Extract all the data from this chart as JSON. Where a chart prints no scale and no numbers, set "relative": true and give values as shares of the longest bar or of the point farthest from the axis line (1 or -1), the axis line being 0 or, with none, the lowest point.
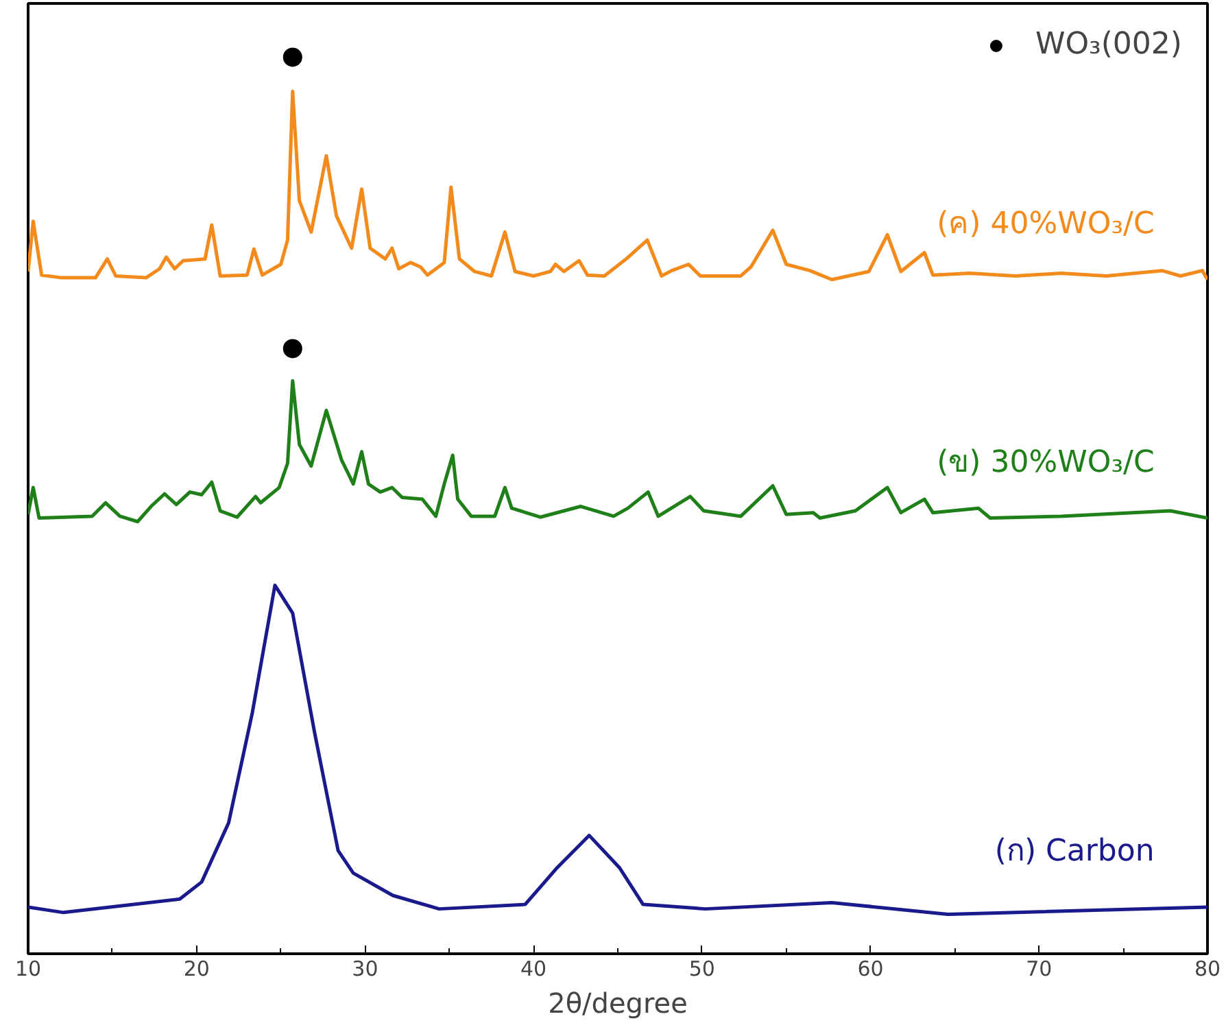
{
  "chart_data": {
    "type": "line",
    "xlabel": "2θ/degree",
    "relative": true,
    "xlim": [
      10,
      80
    ],
    "xticks": [
      10,
      20,
      30,
      40,
      50,
      60,
      70,
      80
    ],
    "tick_labels": "x",
    "grid": false,
    "legend": "top right",
    "line_style": "solid",
    "marker": "none",
    "series": [
      {
        "name": "(ค) 40%WO₃/C",
        "color": "#f28a1c",
        "x": [
          10.0,
          10.3,
          10.8,
          12,
          14,
          14.7,
          15.2,
          17,
          17.8,
          18.2,
          18.7,
          19.2,
          20.5,
          20.9,
          21.4,
          23,
          23.4,
          23.9,
          25,
          25.4,
          25.7,
          26.1,
          26.8,
          27.7,
          28.3,
          29.2,
          29.8,
          30.3,
          31.2,
          31.6,
          32,
          32.7,
          33.3,
          33.7,
          34.7,
          35.1,
          35.6,
          36.5,
          37.5,
          38.3,
          38.9,
          40,
          41,
          41.3,
          41.8,
          42.7,
          43.2,
          44.2,
          45.5,
          46.75,
          47.6,
          48.2,
          49.2,
          49.9,
          52.3,
          52.9,
          54.2,
          55.0,
          56.4,
          57.7,
          59.9,
          61.0,
          61.8,
          63.2,
          63.7,
          65.9,
          68.6,
          71.3,
          74.0,
          77.3,
          78.4,
          79.7,
          80
        ],
        "values": [
          0.761,
          0.817,
          0.757,
          0.754,
          0.754,
          0.775,
          0.756,
          0.754,
          0.764,
          0.777,
          0.764,
          0.773,
          0.775,
          0.813,
          0.756,
          0.757,
          0.786,
          0.757,
          0.769,
          0.796,
          0.962,
          0.84,
          0.805,
          0.89,
          0.823,
          0.787,
          0.853,
          0.787,
          0.775,
          0.787,
          0.764,
          0.771,
          0.766,
          0.757,
          0.771,
          0.855,
          0.775,
          0.761,
          0.756,
          0.805,
          0.761,
          0.756,
          0.761,
          0.769,
          0.761,
          0.773,
          0.757,
          0.756,
          0.775,
          0.796,
          0.756,
          0.762,
          0.769,
          0.756,
          0.756,
          0.766,
          0.807,
          0.769,
          0.762,
          0.752,
          0.761,
          0.802,
          0.761,
          0.782,
          0.757,
          0.759,
          0.756,
          0.759,
          0.756,
          0.762,
          0.756,
          0.762,
          0.752
        ]
      },
      {
        "name": "(ข) 30%WO₃/C",
        "color": "#1f8019",
        "x": [
          10.0,
          10.3,
          10.65,
          13.8,
          14.6,
          15.45,
          16.5,
          17.3,
          18.1,
          18.8,
          19.6,
          20.3,
          20.9,
          21.4,
          22.4,
          23.5,
          23.8,
          24.9,
          25.4,
          25.7,
          26.1,
          26.8,
          27.7,
          28.6,
          29.3,
          29.8,
          30.2,
          30.9,
          31.6,
          32.2,
          33.4,
          34.2,
          34.7,
          35.2,
          35.5,
          36.3,
          37.7,
          38.3,
          38.7,
          40.4,
          42.8,
          44.75,
          45.6,
          46.8,
          47.4,
          49.3,
          50.1,
          52.3,
          54.2,
          55.0,
          56.6,
          57.0,
          59.1,
          61.0,
          61.8,
          63.2,
          63.7,
          66.4,
          67.1,
          71.3,
          77.8,
          80
        ],
        "values": [
          0.49,
          0.52,
          0.486,
          0.488,
          0.503,
          0.488,
          0.482,
          0.499,
          0.513,
          0.501,
          0.515,
          0.512,
          0.526,
          0.494,
          0.487,
          0.51,
          0.503,
          0.52,
          0.547,
          0.639,
          0.568,
          0.544,
          0.606,
          0.551,
          0.524,
          0.56,
          0.524,
          0.515,
          0.52,
          0.509,
          0.507,
          0.488,
          0.524,
          0.556,
          0.507,
          0.488,
          0.488,
          0.52,
          0.497,
          0.487,
          0.499,
          0.488,
          0.497,
          0.515,
          0.488,
          0.51,
          0.494,
          0.488,
          0.522,
          0.49,
          0.492,
          0.486,
          0.494,
          0.52,
          0.492,
          0.507,
          0.492,
          0.497,
          0.486,
          0.488,
          0.494,
          0.486
        ]
      },
      {
        "name": "(ก) Carbon",
        "color": "#1a1a8c",
        "x": [
          10,
          12.1,
          19.0,
          20.3,
          21.9,
          23.3,
          24.65,
          25.7,
          27.0,
          28.4,
          29.3,
          31.65,
          34.4,
          39.5,
          41.4,
          43.3,
          45.1,
          46.5,
          50.2,
          57.7,
          64.6,
          80
        ],
        "values": [
          0.052,
          0.046,
          0.061,
          0.08,
          0.146,
          0.268,
          0.411,
          0.38,
          0.247,
          0.115,
          0.09,
          0.065,
          0.05,
          0.055,
          0.096,
          0.132,
          0.096,
          0.055,
          0.05,
          0.057,
          0.044,
          0.052
        ]
      },
      {
        "name": "WO₃(002)",
        "type": "scatter",
        "marker": "circle",
        "color": "#000000",
        "x": [
          25.7,
          25.7
        ],
        "values": [
          1.0,
          0.675
        ]
      }
    ]
  }
}
